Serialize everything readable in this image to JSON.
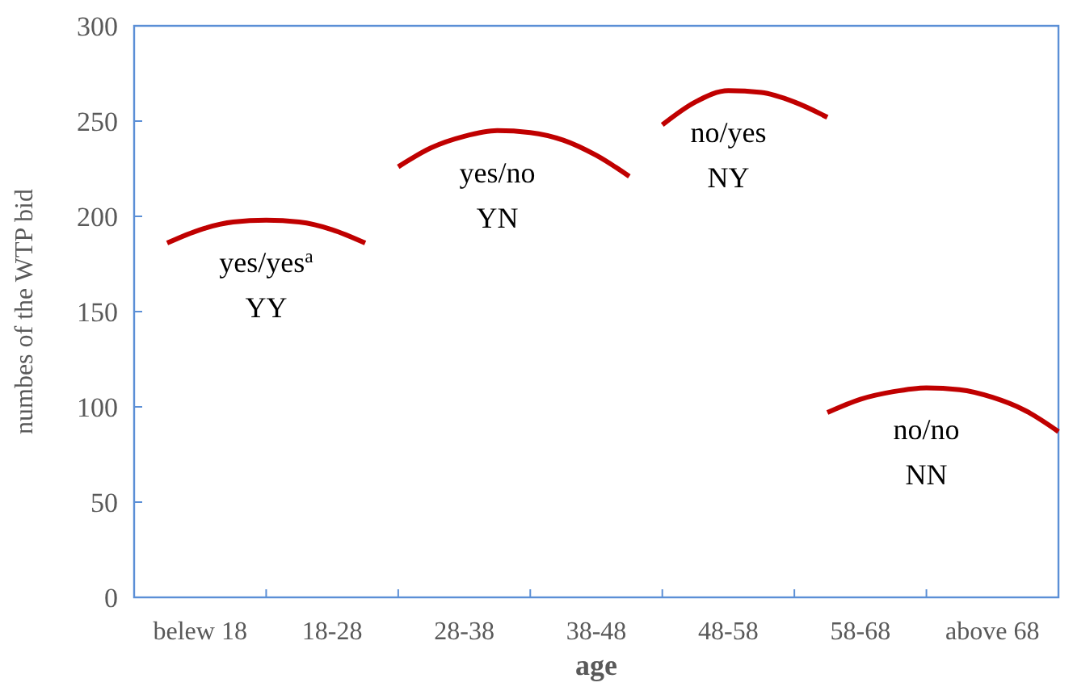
{
  "chart_data": {
    "type": "line",
    "xlabel": "age",
    "ylabel": "numbes of the WTP bid",
    "categories": [
      null,
      null,
      "belew 18",
      null,
      null,
      null,
      "18-28",
      null,
      null,
      null,
      "28-38",
      null,
      null,
      null,
      "38-48",
      null,
      null,
      null,
      "48-58",
      null,
      null,
      null,
      "58-68",
      null,
      null,
      null,
      "above 68",
      null,
      null
    ],
    "ylim": [
      0,
      300
    ],
    "yticks": [
      0,
      50,
      100,
      150,
      200,
      250,
      300
    ],
    "line_style": "solid",
    "series": [
      {
        "name": "yes/yes$^{a}$\nYY",
        "color": "#c00000",
        "values": [
          null,
          186,
          193,
          197,
          198,
          197,
          193,
          186,
          null,
          null,
          null,
          null,
          null,
          null,
          null,
          null,
          null,
          null,
          null,
          null,
          null,
          null,
          null,
          null,
          null,
          null,
          null,
          null,
          null
        ]
      },
      {
        "name": "yes/no\nYN",
        "color": "#c00000",
        "values": [
          null,
          null,
          null,
          null,
          null,
          null,
          null,
          null,
          226,
          236,
          242,
          245,
          244,
          240,
          232,
          221,
          null,
          null,
          null,
          null,
          null,
          null,
          null,
          null,
          null,
          null,
          null,
          null,
          null
        ]
      },
      {
        "name": "no/yes\nNY",
        "color": "#c00000",
        "values": [
          null,
          null,
          null,
          null,
          null,
          null,
          null,
          null,
          null,
          null,
          null,
          null,
          null,
          null,
          null,
          null,
          248,
          260,
          266,
          265,
          260,
          252,
          null,
          null,
          null,
          null,
          null,
          null,
          null
        ]
      },
      {
        "name": "no/no\nNN",
        "color": "#c00000",
        "values": [
          null,
          null,
          null,
          null,
          null,
          null,
          null,
          null,
          null,
          null,
          null,
          null,
          null,
          null,
          null,
          null,
          null,
          null,
          null,
          null,
          null,
          97,
          104,
          108,
          110,
          109,
          105,
          98,
          87
        ]
      }
    ]
  }
}
